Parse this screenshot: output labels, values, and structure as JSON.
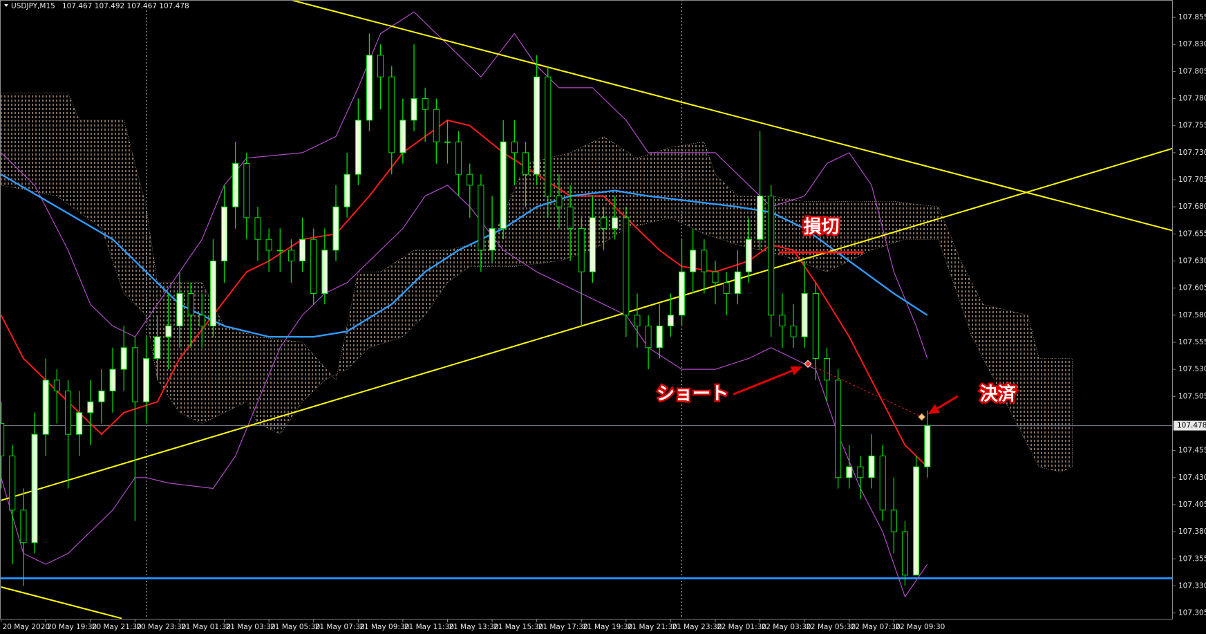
{
  "chart_data": {
    "type": "candlestick",
    "symbol": "USDJPY,M15",
    "quote": "107.467 107.492 107.467 107.478",
    "open": [
      107.48,
      107.45,
      107.4,
      107.37,
      107.47,
      107.52,
      107.51,
      107.47,
      107.49,
      107.5,
      107.51,
      107.53,
      107.55,
      107.5,
      107.54,
      107.56,
      107.57,
      107.6,
      107.58,
      107.57,
      107.63,
      107.68,
      107.72,
      107.67,
      107.65,
      107.64,
      107.64,
      107.63,
      107.65,
      107.6,
      107.64,
      107.68,
      107.71,
      107.76,
      107.82,
      107.8,
      107.73,
      107.76,
      107.78,
      107.77,
      107.74,
      107.74,
      107.71,
      107.7,
      107.64,
      107.66,
      107.74,
      107.73,
      107.71,
      107.8,
      107.69,
      107.68,
      107.66,
      107.62,
      107.67,
      107.66,
      107.67,
      107.58,
      107.57,
      107.55,
      107.57,
      107.58,
      107.62,
      107.64,
      107.62,
      107.61,
      107.6,
      107.62,
      107.65,
      107.69,
      107.58,
      107.57,
      107.56,
      107.6,
      107.54,
      107.52,
      107.43,
      107.44,
      107.43,
      107.45,
      107.4,
      107.38,
      107.34,
      107.44
    ],
    "high": [
      107.5,
      107.46,
      107.42,
      107.49,
      107.54,
      107.53,
      107.52,
      107.51,
      107.52,
      107.53,
      107.55,
      107.57,
      107.56,
      107.56,
      107.58,
      107.6,
      107.62,
      107.61,
      107.6,
      107.65,
      107.7,
      107.74,
      107.73,
      107.68,
      107.66,
      107.66,
      107.65,
      107.67,
      107.66,
      107.66,
      107.7,
      107.73,
      107.78,
      107.84,
      107.83,
      107.81,
      107.78,
      107.83,
      107.79,
      107.78,
      107.76,
      107.75,
      107.72,
      107.71,
      107.69,
      107.76,
      107.76,
      107.74,
      107.82,
      107.81,
      107.71,
      107.7,
      107.67,
      107.69,
      107.68,
      107.69,
      107.68,
      107.6,
      107.58,
      107.59,
      107.6,
      107.65,
      107.66,
      107.65,
      107.63,
      107.62,
      107.64,
      107.67,
      107.75,
      107.7,
      107.6,
      107.59,
      107.63,
      107.61,
      107.55,
      107.53,
      107.46,
      107.45,
      107.47,
      107.46,
      107.43,
      107.39,
      107.45,
      107.492
    ],
    "low": [
      107.42,
      107.35,
      107.33,
      107.36,
      107.45,
      107.48,
      107.42,
      107.45,
      107.46,
      107.48,
      107.49,
      107.51,
      107.39,
      107.48,
      107.52,
      107.53,
      107.55,
      107.55,
      107.55,
      107.56,
      107.61,
      107.66,
      107.65,
      107.63,
      107.62,
      107.62,
      107.61,
      107.62,
      107.59,
      107.59,
      107.63,
      107.67,
      107.7,
      107.75,
      107.77,
      107.71,
      107.72,
      107.75,
      107.74,
      107.72,
      107.72,
      107.69,
      107.67,
      107.62,
      107.63,
      107.65,
      107.7,
      107.68,
      107.7,
      107.67,
      107.66,
      107.63,
      107.57,
      107.61,
      107.64,
      107.65,
      107.56,
      107.55,
      107.53,
      107.54,
      107.56,
      107.57,
      107.6,
      107.6,
      107.59,
      107.58,
      107.59,
      107.61,
      107.64,
      107.56,
      107.55,
      107.55,
      107.55,
      107.52,
      107.5,
      107.42,
      107.42,
      107.41,
      107.42,
      107.39,
      107.36,
      107.33,
      107.34,
      107.43
    ],
    "close": [
      107.45,
      107.4,
      107.37,
      107.47,
      107.52,
      107.51,
      107.47,
      107.49,
      107.5,
      107.51,
      107.53,
      107.55,
      107.5,
      107.54,
      107.56,
      107.57,
      107.6,
      107.58,
      107.57,
      107.63,
      107.68,
      107.72,
      107.67,
      107.65,
      107.64,
      107.64,
      107.63,
      107.65,
      107.6,
      107.64,
      107.68,
      107.71,
      107.76,
      107.82,
      107.8,
      107.73,
      107.76,
      107.78,
      107.77,
      107.74,
      107.74,
      107.71,
      107.7,
      107.64,
      107.66,
      107.74,
      107.73,
      107.71,
      107.8,
      107.69,
      107.68,
      107.66,
      107.62,
      107.67,
      107.66,
      107.67,
      107.58,
      107.57,
      107.55,
      107.57,
      107.58,
      107.62,
      107.64,
      107.62,
      107.61,
      107.6,
      107.62,
      107.65,
      107.69,
      107.58,
      107.57,
      107.56,
      107.6,
      107.54,
      107.52,
      107.43,
      107.44,
      107.43,
      107.45,
      107.4,
      107.38,
      107.34,
      107.44,
      107.478
    ],
    "wick_color": "#00e000",
    "up_body_color": "#e6ffd8",
    "down_body_color": "#000000",
    "xlim": [
      -0.1,
      105
    ],
    "ylim": [
      107.299,
      107.871
    ],
    "xticks": [
      {
        "value": 0,
        "label": "20 May 2020"
      },
      {
        "value": 4,
        "label": "20 May 19:30"
      },
      {
        "value": 8,
        "label": "20 May 21:30"
      },
      {
        "value": 12,
        "label": "20 May 23:30"
      },
      {
        "value": 16,
        "label": "21 May 01:30"
      },
      {
        "value": 20,
        "label": "21 May 03:30"
      },
      {
        "value": 24,
        "label": "21 May 05:30"
      },
      {
        "value": 28,
        "label": "21 May 07:30"
      },
      {
        "value": 32,
        "label": "21 May 09:30"
      },
      {
        "value": 36,
        "label": "21 May 11:30"
      },
      {
        "value": 40,
        "label": "21 May 13:30"
      },
      {
        "value": 44,
        "label": "21 May 15:30"
      },
      {
        "value": 48,
        "label": "21 May 17:30"
      },
      {
        "value": 52,
        "label": "21 May 19:30"
      },
      {
        "value": 56,
        "label": "21 May 21:30"
      },
      {
        "value": 60,
        "label": "21 May 23:30"
      },
      {
        "value": 64,
        "label": "22 May 01:30"
      },
      {
        "value": 68,
        "label": "22 May 03:30"
      },
      {
        "value": 72,
        "label": "22 May 05:30"
      },
      {
        "value": 76,
        "label": "22 May 07:30"
      },
      {
        "value": 80,
        "label": "22 May 09:30"
      }
    ],
    "yticks": [
      107.855,
      {
        "value": 107.83,
        "label": "107.830"
      },
      107.805,
      {
        "value": 107.78,
        "label": "107.780"
      },
      107.755,
      {
        "value": 107.73,
        "label": "107.730"
      },
      107.705,
      {
        "value": 107.68,
        "label": "107.680"
      },
      107.655,
      {
        "value": 107.63,
        "label": "107.630"
      },
      107.605,
      {
        "value": 107.58,
        "label": "107.580"
      },
      107.555,
      {
        "value": 107.53,
        "label": "107.530"
      },
      107.505,
      107.455,
      {
        "value": 107.43,
        "label": "107.430"
      },
      107.405,
      {
        "value": 107.38,
        "label": "107.380"
      },
      107.355,
      {
        "value": 107.33,
        "label": "107.330"
      },
      107.305
    ],
    "current_price": 107.478,
    "current_price_color": "#7c8796",
    "separators": [
      13,
      61
    ],
    "hline": {
      "value": 107.337,
      "color": "#1e90ff"
    },
    "cloud": {
      "color": "#d8b898",
      "top_x": [
        0,
        6,
        7,
        11,
        12,
        13,
        14,
        18,
        20,
        23,
        27,
        30,
        32,
        34,
        37,
        40,
        44,
        47,
        51,
        54,
        57,
        60,
        63,
        64,
        66,
        69,
        72,
        80,
        84,
        86,
        88,
        92,
        93,
        96
      ],
      "top": [
        107.785,
        107.785,
        107.76,
        107.76,
        107.72,
        107.68,
        107.61,
        107.61,
        107.57,
        107.56,
        107.555,
        107.52,
        107.62,
        107.62,
        107.64,
        107.64,
        107.65,
        107.72,
        107.73,
        107.745,
        107.725,
        107.735,
        107.74,
        107.71,
        107.69,
        107.69,
        107.685,
        107.685,
        107.68,
        107.63,
        107.59,
        107.58,
        107.54,
        107.54
      ],
      "bottom_x": [
        0,
        5,
        9,
        11,
        13,
        14,
        16,
        18,
        22,
        23,
        25,
        27,
        29,
        31,
        33,
        36,
        38,
        40,
        42,
        46,
        50,
        53,
        56,
        60,
        63,
        66,
        70,
        74,
        78,
        81,
        84,
        85,
        87,
        90,
        93,
        95,
        96
      ],
      "bottom": [
        107.7,
        107.69,
        107.66,
        107.6,
        107.58,
        107.52,
        107.49,
        107.48,
        107.5,
        107.48,
        107.47,
        107.5,
        107.52,
        107.53,
        107.55,
        107.56,
        107.58,
        107.61,
        107.625,
        107.625,
        107.63,
        107.64,
        107.66,
        107.67,
        107.655,
        107.645,
        107.635,
        107.62,
        107.64,
        107.65,
        107.65,
        107.62,
        107.56,
        107.5,
        107.44,
        107.435,
        107.44
      ]
    },
    "lines": [
      {
        "color": "#b04cc8",
        "width": 1.2,
        "x": [
          0,
          3,
          6,
          8,
          10,
          12,
          14,
          16,
          18,
          20,
          22,
          27,
          30,
          32,
          34,
          37,
          40,
          43,
          46,
          48,
          50,
          53,
          56,
          58,
          61,
          64,
          67,
          69,
          72,
          74,
          76,
          78,
          80,
          82,
          83
        ],
        "y": [
          107.73,
          107.7,
          107.64,
          107.59,
          107.57,
          107.56,
          107.59,
          107.62,
          107.65,
          107.7,
          107.725,
          107.73,
          107.745,
          107.79,
          107.84,
          107.86,
          107.83,
          107.8,
          107.84,
          107.81,
          107.79,
          107.79,
          107.76,
          107.73,
          107.73,
          107.73,
          107.7,
          107.68,
          107.69,
          107.72,
          107.73,
          107.7,
          107.62,
          107.57,
          107.54
        ]
      },
      {
        "color": "#b04cc8",
        "width": 1.2,
        "x": [
          0,
          2,
          4,
          6,
          8,
          10,
          12,
          13,
          15,
          19,
          21,
          23,
          25,
          27,
          29,
          31,
          33,
          36,
          38,
          40,
          42,
          45,
          48,
          50,
          52,
          54,
          56,
          58,
          61,
          64,
          67,
          69,
          71,
          73,
          75,
          77,
          79,
          81,
          83
        ],
        "y": [
          107.43,
          107.36,
          107.35,
          107.36,
          107.38,
          107.4,
          107.43,
          107.43,
          107.425,
          107.42,
          107.45,
          107.5,
          107.55,
          107.58,
          107.6,
          107.61,
          107.63,
          107.66,
          107.69,
          107.7,
          107.68,
          107.64,
          107.62,
          107.61,
          107.6,
          107.59,
          107.58,
          107.55,
          107.53,
          107.53,
          107.54,
          107.55,
          107.54,
          107.53,
          107.47,
          107.42,
          107.38,
          107.32,
          107.35
        ]
      },
      {
        "color": "#ff1a1a",
        "width": 2,
        "x": [
          0,
          2,
          5,
          8,
          9,
          11,
          14,
          16,
          19,
          22,
          24,
          27,
          30,
          33,
          36,
          40,
          42,
          45,
          48,
          51,
          54,
          56,
          59,
          61,
          64,
          67,
          69,
          71,
          73,
          76,
          79,
          81,
          83
        ],
        "y": [
          107.58,
          107.54,
          107.51,
          107.48,
          107.47,
          107.49,
          107.5,
          107.54,
          107.58,
          107.62,
          107.63,
          107.65,
          107.655,
          107.69,
          107.73,
          107.76,
          107.755,
          107.73,
          107.71,
          107.69,
          107.69,
          107.67,
          107.64,
          107.625,
          107.62,
          107.63,
          107.645,
          107.64,
          107.61,
          107.56,
          107.5,
          107.46,
          107.44
        ]
      },
      {
        "color": "#2f9bff",
        "width": 2.4,
        "x": [
          0,
          5,
          10,
          13,
          16,
          20,
          24,
          28,
          31,
          35,
          38,
          41,
          45,
          48,
          51,
          55,
          58,
          62,
          66,
          69,
          72,
          76,
          80,
          83
        ],
        "y": [
          107.71,
          107.68,
          107.65,
          107.62,
          107.59,
          107.57,
          107.56,
          107.56,
          107.565,
          107.59,
          107.62,
          107.64,
          107.66,
          107.68,
          107.69,
          107.695,
          107.69,
          107.685,
          107.68,
          107.675,
          107.66,
          107.63,
          107.6,
          107.58
        ]
      }
    ],
    "trendlines": [
      {
        "color": "#ffff00",
        "x": [
          26,
          105
        ],
        "y": [
          107.871,
          107.658
        ]
      },
      {
        "color": "#ffff00",
        "x": [
          0,
          105
        ],
        "y": [
          107.409,
          107.734
        ]
      },
      {
        "color": "#ffff00",
        "x": [
          0,
          10.8
        ],
        "y": [
          107.329,
          107.3
        ]
      }
    ],
    "stop": {
      "label": "損切",
      "y": 107.638,
      "x": [
        69.7,
        77.3
      ],
      "color": "#ff1a1a"
    },
    "entry": {
      "label": "ショート",
      "x": 72.3,
      "y": 107.535,
      "color": "#ff3030"
    },
    "exit": {
      "label": "決済",
      "x": 82.5,
      "y": 107.486,
      "color": "#ffc890"
    }
  }
}
